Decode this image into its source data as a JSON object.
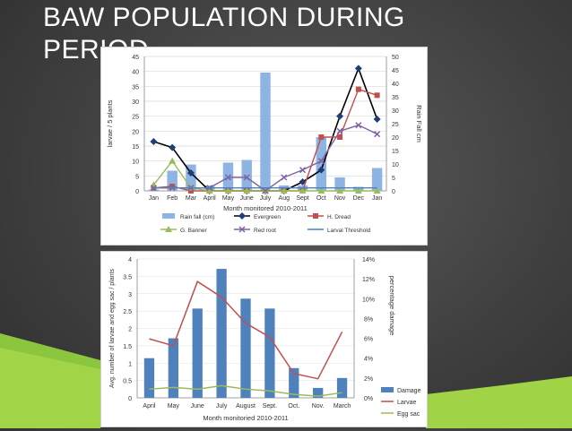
{
  "slide": {
    "title": "BAW POPULATION DURING PERIOD"
  },
  "chart_data": [
    {
      "type": "bar+line",
      "xlabel": "Month monitored 2010-2011",
      "ylabel": "larvae / 5 plants",
      "y2label": "Rain Fall cm",
      "ylim": [
        0,
        45
      ],
      "y2lim": [
        0,
        50
      ],
      "yticks": [
        0,
        5,
        10,
        15,
        20,
        25,
        30,
        35,
        40,
        45
      ],
      "y2ticks": [
        0,
        5,
        10,
        15,
        20,
        25,
        30,
        35,
        40,
        45,
        50
      ],
      "categories": [
        "Jan",
        "Feb",
        "Mar",
        "April",
        "May",
        "June",
        "July",
        "Aug",
        "Sept",
        "Oct",
        "Nov",
        "Dec",
        "Jan"
      ],
      "bars": {
        "name": "Rain fall (cm)",
        "color": "#8db4e2",
        "values": [
          0.5,
          7.5,
          9.8,
          2,
          10.5,
          11.5,
          44,
          2,
          2,
          20,
          5,
          1.5,
          8.5
        ]
      },
      "series": [
        {
          "name": "Evergreen",
          "color": "#000000",
          "marker": "line",
          "values": [
            16.5,
            14.5,
            6,
            0,
            0,
            0,
            0,
            0,
            3,
            7,
            25,
            41,
            24
          ]
        },
        {
          "name": "H. Dread",
          "color": "#c0504d",
          "marker": "square",
          "values": [
            1,
            1.5,
            0,
            0,
            0,
            0,
            0,
            0,
            0,
            18,
            18,
            34,
            32
          ]
        },
        {
          "name": "G. Banner",
          "color": "#9bbb59",
          "marker": "triangle",
          "values": [
            2,
            10,
            1,
            0,
            0,
            0,
            0,
            0,
            0,
            0,
            0,
            0,
            0
          ]
        },
        {
          "name": "Red root",
          "color": "#8064a2",
          "marker": "x",
          "values": [
            1,
            1,
            1,
            1,
            4.5,
            4.5,
            0,
            4.5,
            7,
            10,
            20,
            22,
            19
          ]
        },
        {
          "name": "Larval Threshold",
          "color": "#4f81bd",
          "marker": "line",
          "values": [
            1,
            1,
            1,
            1,
            1,
            1,
            1,
            1,
            1,
            1,
            1,
            1,
            1
          ]
        }
      ],
      "legend": [
        "Rain fall (cm)",
        "Evergreen",
        "H. Dread",
        "G. Banner",
        "Red root",
        "Larval Threshold"
      ],
      "legend_position": "bottom"
    },
    {
      "type": "bar+line",
      "xlabel": "Month monitoried 2010-2011",
      "ylabel": "Avg. number of larvae and egg sac / plants",
      "y2label": "percentage damage",
      "ylim": [
        0,
        4
      ],
      "y2lim": [
        0,
        14
      ],
      "yticks": [
        "0",
        "0.5",
        "1",
        "1.5",
        "2",
        "2.5",
        "3",
        "3.5",
        "4"
      ],
      "y2ticks": [
        "0%",
        "2%",
        "4%",
        "6%",
        "8%",
        "10%",
        "12%",
        "14%"
      ],
      "categories": [
        "April",
        "May",
        "June",
        "July",
        "August",
        "Sept.",
        "Oct.",
        "Nov.",
        "March"
      ],
      "bars": {
        "name": "Damage",
        "color": "#4f81bd",
        "axis": "right",
        "values": [
          4,
          6,
          9,
          13,
          10,
          9,
          3,
          1,
          2
        ]
      },
      "series": [
        {
          "name": "Larvae",
          "color": "#c0504d",
          "axis": "left",
          "values": [
            1.7,
            1.5,
            3.35,
            2.9,
            2.15,
            1.75,
            0.7,
            0.55,
            1.9
          ]
        },
        {
          "name": "Egg sac",
          "color": "#9bbb59",
          "axis": "left",
          "values": [
            0.25,
            0.3,
            0.25,
            0.35,
            0.25,
            0.2,
            0.1,
            0.05,
            0.15
          ]
        }
      ],
      "legend": [
        "Damage",
        "Larvae",
        "Egg sac"
      ],
      "legend_position": "right"
    }
  ]
}
